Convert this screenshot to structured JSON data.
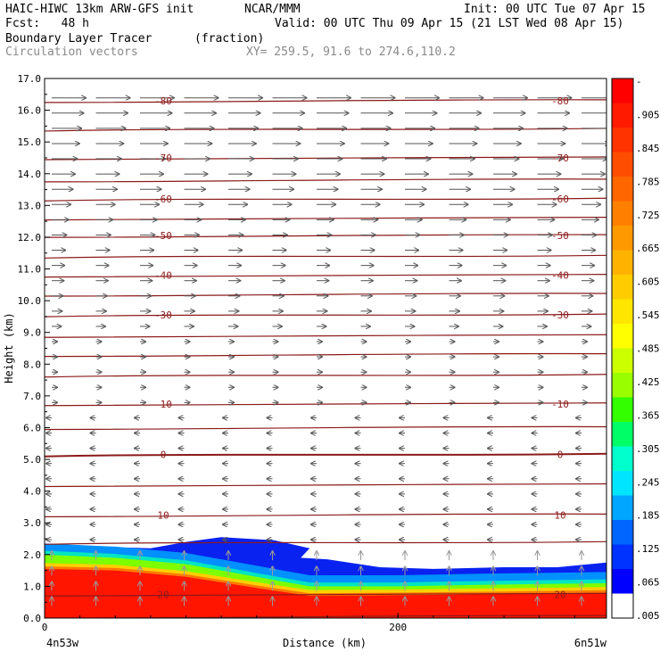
{
  "header": {
    "line1_left": "HAIC-HIWC 13km ARW-GFS init",
    "line1_mid": "NCAR/MMM",
    "line1_right": "Init: 00 UTC Tue 07 Apr 15",
    "line2_left": "Fcst:   48 h",
    "line2_right": "Valid: 00 UTC Thu 09 Apr 15 (21 LST Wed 08 Apr 15)",
    "line3_left": "Boundary Layer Tracer",
    "line3_units": "(fraction)",
    "line4_left": "Circulation vectors",
    "line4_right": "XY= 259.5, 91.6 to 274.6,110.2"
  },
  "chart_data": {
    "type": "heatmap",
    "xlabel": "Distance (km)",
    "ylabel": "Height (km)",
    "xlim": [
      0,
      318
    ],
    "ylim": [
      0,
      17
    ],
    "x_ticks": [
      {
        "value": 0,
        "label": "0"
      },
      {
        "value": 200,
        "label": "200"
      }
    ],
    "x_endpoint_labels": {
      "left": "4n53w",
      "right": "6n51w"
    },
    "y_ticks": [
      "0.0",
      "1.0",
      "2.0",
      "3.0",
      "4.0",
      "5.0",
      "6.0",
      "7.0",
      "8.0",
      "9.0",
      "10.0",
      "11.0",
      "12.0",
      "13.0",
      "14.0",
      "15.0",
      "16.0",
      "17.0"
    ],
    "colorbar": {
      "labels": [
        "-",
        ".905",
        ".845",
        ".785",
        ".725",
        ".665",
        ".605",
        ".545",
        ".485",
        ".425",
        ".365",
        ".305",
        ".245",
        ".185",
        ".125",
        ".065",
        ".005"
      ],
      "colors": [
        "#ff0000",
        "#ff1a00",
        "#ff3300",
        "#ff4d00",
        "#ff6600",
        "#ff8000",
        "#ff9900",
        "#ffb300",
        "#ffcc00",
        "#ffe600",
        "#ffff00",
        "#ccff00",
        "#99ff00",
        "#33ff00",
        "#00ff66",
        "#00ffcc",
        "#00e5ff",
        "#00a6ff",
        "#0066ff",
        "#0033ff",
        "#0000ff",
        "#ffffff"
      ]
    },
    "tracer_top_km": [
      [
        0,
        2.35
      ],
      [
        30,
        2.25
      ],
      [
        60,
        2.2
      ],
      [
        80,
        2.4
      ],
      [
        100,
        2.55
      ],
      [
        130,
        2.45
      ],
      [
        150,
        2.2
      ],
      [
        145,
        1.9
      ],
      [
        160,
        1.85
      ],
      [
        190,
        1.6
      ],
      [
        220,
        1.55
      ],
      [
        260,
        1.6
      ],
      [
        290,
        1.6
      ],
      [
        318,
        1.75
      ]
    ],
    "green_top_km": [
      [
        0,
        2.0
      ],
      [
        40,
        1.9
      ],
      [
        80,
        1.7
      ],
      [
        120,
        1.3
      ],
      [
        150,
        1.0
      ],
      [
        200,
        1.0
      ],
      [
        250,
        1.05
      ],
      [
        318,
        1.1
      ]
    ],
    "red_top_km": [
      [
        0,
        1.55
      ],
      [
        40,
        1.5
      ],
      [
        80,
        1.3
      ],
      [
        120,
        0.95
      ],
      [
        150,
        0.7
      ],
      [
        200,
        0.72
      ],
      [
        250,
        0.75
      ],
      [
        318,
        0.8
      ]
    ],
    "temperature_isotherms": [
      {
        "y": 0.05,
        "label": ""
      },
      {
        "y": 0.75,
        "label": "20"
      },
      {
        "y": 2.38,
        "label": ""
      },
      {
        "y": 3.25,
        "label": "10"
      },
      {
        "y": 4.2,
        "label": ""
      },
      {
        "y": 5.15,
        "label": "0"
      },
      {
        "y": 6.0,
        "label": ""
      },
      {
        "y": 6.75,
        "label": "-10"
      },
      {
        "y": 7.65,
        "label": ""
      },
      {
        "y": 8.3,
        "label": ""
      },
      {
        "y": 8.9,
        "label": ""
      },
      {
        "y": 9.55,
        "label": "-30"
      },
      {
        "y": 10.2,
        "label": ""
      },
      {
        "y": 10.8,
        "label": "-40"
      },
      {
        "y": 11.4,
        "label": ""
      },
      {
        "y": 12.05,
        "label": "-50"
      },
      {
        "y": 12.6,
        "label": ""
      },
      {
        "y": 13.2,
        "label": "-60"
      },
      {
        "y": 13.8,
        "label": ""
      },
      {
        "y": 14.5,
        "label": "-70"
      },
      {
        "y": 15.4,
        "label": ""
      },
      {
        "y": 16.3,
        "label": "-80"
      }
    ]
  }
}
